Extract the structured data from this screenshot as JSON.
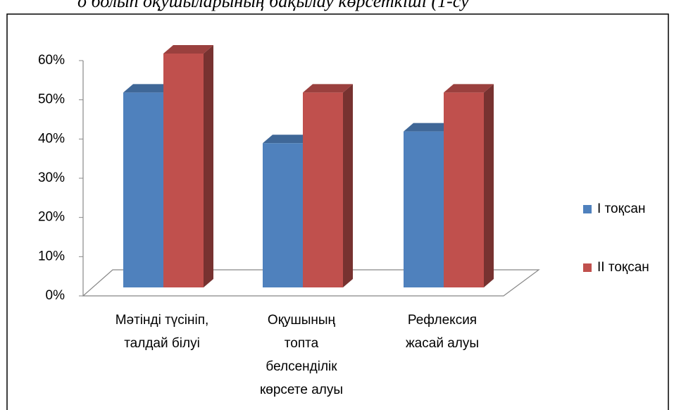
{
  "caption": "о болып оқушыларының  бақылау көрсеткіші  (1-су",
  "chart_data": {
    "type": "bar3d",
    "categories": [
      "Мәтінді түсініп,\nталдай білуі",
      "Оқушының\nтопта\nбелсенділік\nкөрсете алуы",
      "Рефлексия\nжасай алуы"
    ],
    "series": [
      {
        "name": "I тоқсан",
        "color": "#4f81bd",
        "values": [
          50,
          37,
          40
        ]
      },
      {
        "name": "II тоқсан",
        "color": "#c0504d",
        "values": [
          60,
          50,
          50
        ]
      }
    ],
    "ylim": [
      0,
      60
    ],
    "yticks": [
      {
        "value": 0,
        "label": "0%"
      },
      {
        "value": 10,
        "label": "10%"
      },
      {
        "value": 20,
        "label": "20%"
      },
      {
        "value": 30,
        "label": "30%"
      },
      {
        "value": 40,
        "label": "40%"
      },
      {
        "value": 50,
        "label": "50%"
      },
      {
        "value": 60,
        "label": "60%"
      }
    ],
    "legend": "right"
  }
}
